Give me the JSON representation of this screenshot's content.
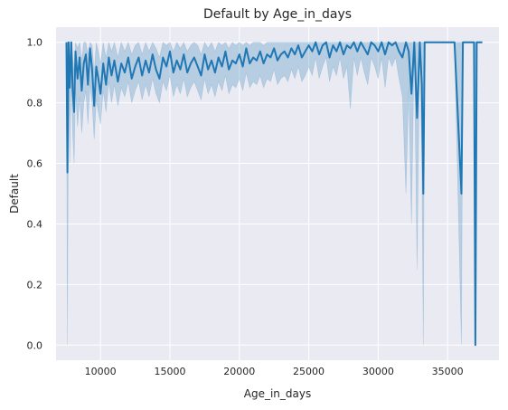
{
  "chart_data": {
    "type": "line",
    "title": "Default by Age_in_days",
    "xlabel": "Age_in_days",
    "ylabel": "Default",
    "xlim": [
      6800,
      38700
    ],
    "ylim": [
      -0.05,
      1.05
    ],
    "xticks": [
      10000,
      15000,
      20000,
      25000,
      30000,
      35000
    ],
    "yticks": [
      0.0,
      0.2,
      0.4,
      0.6,
      0.8,
      1.0
    ],
    "xtick_labels": [
      "10000",
      "15000",
      "20000",
      "25000",
      "30000",
      "35000"
    ],
    "ytick_labels": [
      "0.0",
      "0.2",
      "0.4",
      "0.6",
      "0.8",
      "1.0"
    ],
    "grid": true,
    "style": "darkgrid",
    "series_color": "#1f77b4",
    "band_color": "#1f77b4",
    "series": [
      {
        "values_x": [
          7550,
          7620,
          7700,
          7780,
          7900,
          8000,
          8100,
          8200,
          8350,
          8500,
          8650,
          8800,
          8950,
          9100,
          9250,
          9400,
          9550,
          9700,
          9850,
          10000,
          10200,
          10400,
          10600,
          10800,
          11000,
          11250,
          11500,
          11750,
          12000,
          12250,
          12500,
          12750,
          13000,
          13250,
          13500,
          13750,
          14000,
          14250,
          14500,
          14750,
          15000,
          15250,
          15500,
          15750,
          16000,
          16250,
          16500,
          16750,
          17000,
          17250,
          17500,
          17750,
          18000,
          18250,
          18500,
          18750,
          19000,
          19250,
          19500,
          19750,
          20000,
          20250,
          20500,
          20750,
          21000,
          21250,
          21500,
          21750,
          22000,
          22250,
          22500,
          22750,
          23000,
          23250,
          23500,
          23750,
          24000,
          24250,
          24500,
          24750,
          25000,
          25250,
          25500,
          25750,
          26000,
          26250,
          26500,
          26750,
          27000,
          27250,
          27500,
          27750,
          28000,
          28250,
          28500,
          28750,
          29000,
          29250,
          29500,
          29750,
          30000,
          30250,
          30500,
          30750,
          31000,
          31250,
          31500,
          31750,
          32000,
          32200,
          32400,
          32600,
          32800,
          33000,
          33150,
          33250,
          33350,
          33500,
          34000,
          34500,
          35000,
          35500,
          36000,
          36100,
          36200,
          36500,
          36900,
          37000,
          37100,
          37300,
          37500
        ],
        "values_y": [
          1.0,
          0.57,
          1.0,
          0.85,
          1.0,
          0.84,
          0.77,
          0.97,
          0.88,
          0.95,
          0.84,
          0.93,
          0.96,
          0.86,
          0.98,
          0.91,
          0.79,
          0.92,
          0.88,
          0.83,
          0.93,
          0.86,
          0.95,
          0.89,
          0.94,
          0.87,
          0.93,
          0.9,
          0.95,
          0.88,
          0.92,
          0.95,
          0.89,
          0.94,
          0.9,
          0.96,
          0.91,
          0.88,
          0.95,
          0.92,
          0.97,
          0.9,
          0.94,
          0.91,
          0.96,
          0.9,
          0.93,
          0.95,
          0.92,
          0.89,
          0.96,
          0.91,
          0.94,
          0.9,
          0.95,
          0.92,
          0.97,
          0.91,
          0.94,
          0.93,
          0.96,
          0.92,
          0.98,
          0.93,
          0.95,
          0.94,
          0.97,
          0.93,
          0.96,
          0.95,
          0.98,
          0.94,
          0.96,
          0.97,
          0.95,
          0.98,
          0.96,
          0.99,
          0.95,
          0.97,
          0.99,
          0.97,
          1.0,
          0.96,
          0.99,
          1.0,
          0.95,
          0.99,
          0.97,
          1.0,
          0.96,
          0.99,
          0.98,
          1.0,
          0.97,
          1.0,
          0.98,
          0.96,
          1.0,
          0.99,
          0.97,
          1.0,
          0.96,
          1.0,
          0.99,
          1.0,
          0.97,
          0.95,
          1.0,
          0.97,
          0.83,
          1.0,
          0.75,
          1.0,
          0.86,
          0.5,
          1.0,
          1.0,
          1.0,
          1.0,
          1.0,
          1.0,
          0.5,
          1.0,
          1.0,
          1.0,
          1.0,
          0.0,
          1.0,
          1.0,
          1.0
        ],
        "ci_low": [
          0.95,
          0.0,
          0.92,
          0.6,
          0.9,
          0.7,
          0.6,
          0.85,
          0.72,
          0.82,
          0.7,
          0.8,
          0.84,
          0.73,
          0.86,
          0.8,
          0.68,
          0.81,
          0.77,
          0.73,
          0.84,
          0.77,
          0.87,
          0.8,
          0.86,
          0.79,
          0.85,
          0.82,
          0.87,
          0.8,
          0.84,
          0.87,
          0.81,
          0.86,
          0.82,
          0.88,
          0.83,
          0.8,
          0.87,
          0.84,
          0.89,
          0.82,
          0.86,
          0.83,
          0.88,
          0.82,
          0.85,
          0.87,
          0.84,
          0.81,
          0.88,
          0.83,
          0.86,
          0.82,
          0.87,
          0.84,
          0.89,
          0.83,
          0.86,
          0.85,
          0.88,
          0.84,
          0.9,
          0.85,
          0.87,
          0.86,
          0.89,
          0.85,
          0.88,
          0.87,
          0.91,
          0.86,
          0.88,
          0.89,
          0.87,
          0.91,
          0.88,
          0.92,
          0.87,
          0.89,
          0.92,
          0.89,
          0.95,
          0.88,
          0.92,
          0.95,
          0.87,
          0.92,
          0.89,
          0.95,
          0.88,
          0.92,
          0.78,
          0.95,
          0.89,
          0.95,
          0.9,
          0.86,
          0.95,
          0.92,
          0.88,
          0.95,
          0.85,
          0.95,
          0.92,
          0.95,
          0.88,
          0.82,
          0.5,
          0.85,
          0.4,
          1.0,
          0.25,
          1.0,
          0.6,
          0.0,
          1.0,
          1.0,
          1.0,
          1.0,
          1.0,
          1.0,
          0.0,
          1.0,
          1.0,
          1.0,
          1.0,
          0.0,
          1.0,
          1.0,
          1.0
        ],
        "ci_high": [
          1.0,
          1.0,
          1.0,
          1.0,
          1.0,
          0.95,
          0.9,
          1.0,
          0.98,
          1.0,
          0.94,
          1.0,
          1.0,
          0.96,
          1.0,
          0.99,
          0.9,
          1.0,
          0.97,
          0.93,
          1.0,
          0.95,
          1.0,
          0.97,
          1.0,
          0.95,
          1.0,
          0.97,
          1.0,
          0.96,
          0.99,
          1.0,
          0.96,
          1.0,
          0.97,
          1.0,
          0.98,
          0.95,
          1.0,
          0.99,
          1.0,
          0.97,
          1.0,
          0.98,
          1.0,
          0.97,
          0.99,
          1.0,
          0.99,
          0.96,
          1.0,
          0.98,
          1.0,
          0.97,
          1.0,
          0.99,
          1.0,
          0.98,
          1.0,
          0.99,
          1.0,
          0.99,
          1.0,
          0.99,
          1.0,
          1.0,
          1.0,
          0.99,
          1.0,
          1.0,
          1.0,
          1.0,
          1.0,
          1.0,
          1.0,
          1.0,
          1.0,
          1.0,
          1.0,
          1.0,
          1.0,
          1.0,
          1.0,
          1.0,
          1.0,
          1.0,
          1.0,
          1.0,
          1.0,
          1.0,
          1.0,
          1.0,
          1.0,
          1.0,
          1.0,
          1.0,
          1.0,
          1.0,
          1.0,
          1.0,
          1.0,
          1.0,
          1.0,
          1.0,
          1.0,
          1.0,
          1.0,
          1.0,
          1.0,
          1.0,
          1.0,
          1.0,
          1.0,
          1.0,
          1.0,
          1.0,
          1.0,
          1.0,
          1.0,
          1.0,
          1.0,
          1.0,
          1.0,
          1.0,
          1.0,
          1.0,
          1.0,
          1.0,
          1.0,
          1.0,
          1.0,
          1.0,
          1.0
        ]
      }
    ]
  }
}
